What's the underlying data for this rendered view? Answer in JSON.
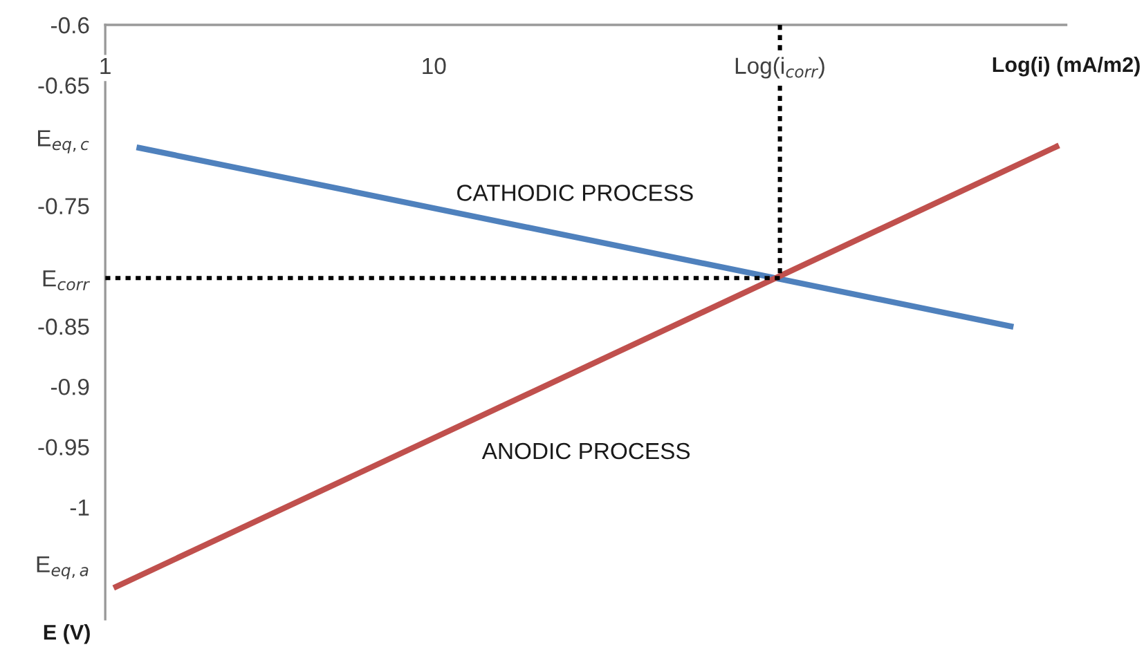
{
  "chart_data": {
    "type": "line",
    "xlabel": "Log(i) (mA/m2)",
    "ylabel": "E (V)",
    "log": "x",
    "xlim": [
      1,
      840
    ],
    "xticks": [
      1,
      10,
      {
        "value": 113,
        "label": "Log(i$_{corr}$)"
      }
    ],
    "ylim": [
      -1.093,
      -0.6
    ],
    "yticks": [
      -0.6,
      -0.65,
      {
        "value": -0.694,
        "label": "E$_{eq,c}$"
      },
      -0.75,
      {
        "value": -0.81,
        "label": "E$_{corr}$"
      },
      -0.85,
      -0.9,
      -0.95,
      -1,
      {
        "value": -1.0475,
        "label": "E$_{eq,a}$"
      }
    ],
    "grid": false,
    "legend": false,
    "marker": "none",
    "series": [
      {
        "name": "CATHODIC PROCESS",
        "color": "#4f81bd",
        "x": [
          1.27,
          569
        ],
        "values": [
          -0.702,
          -0.85
        ]
      },
      {
        "name": "ANODIC PROCESS",
        "color": "#c0504d",
        "x": [
          1.08,
          784
        ],
        "values": [
          -1.066,
          -0.701
        ]
      },
      {
        "color": "#000000",
        "line_style": "dotted",
        "x": [
          1,
          113
        ],
        "values": [
          -0.81,
          -0.81
        ]
      },
      {
        "color": "#000000",
        "line_style": "dotted",
        "x": [
          113,
          113
        ],
        "values": [
          -0.6,
          -0.81
        ]
      }
    ]
  }
}
